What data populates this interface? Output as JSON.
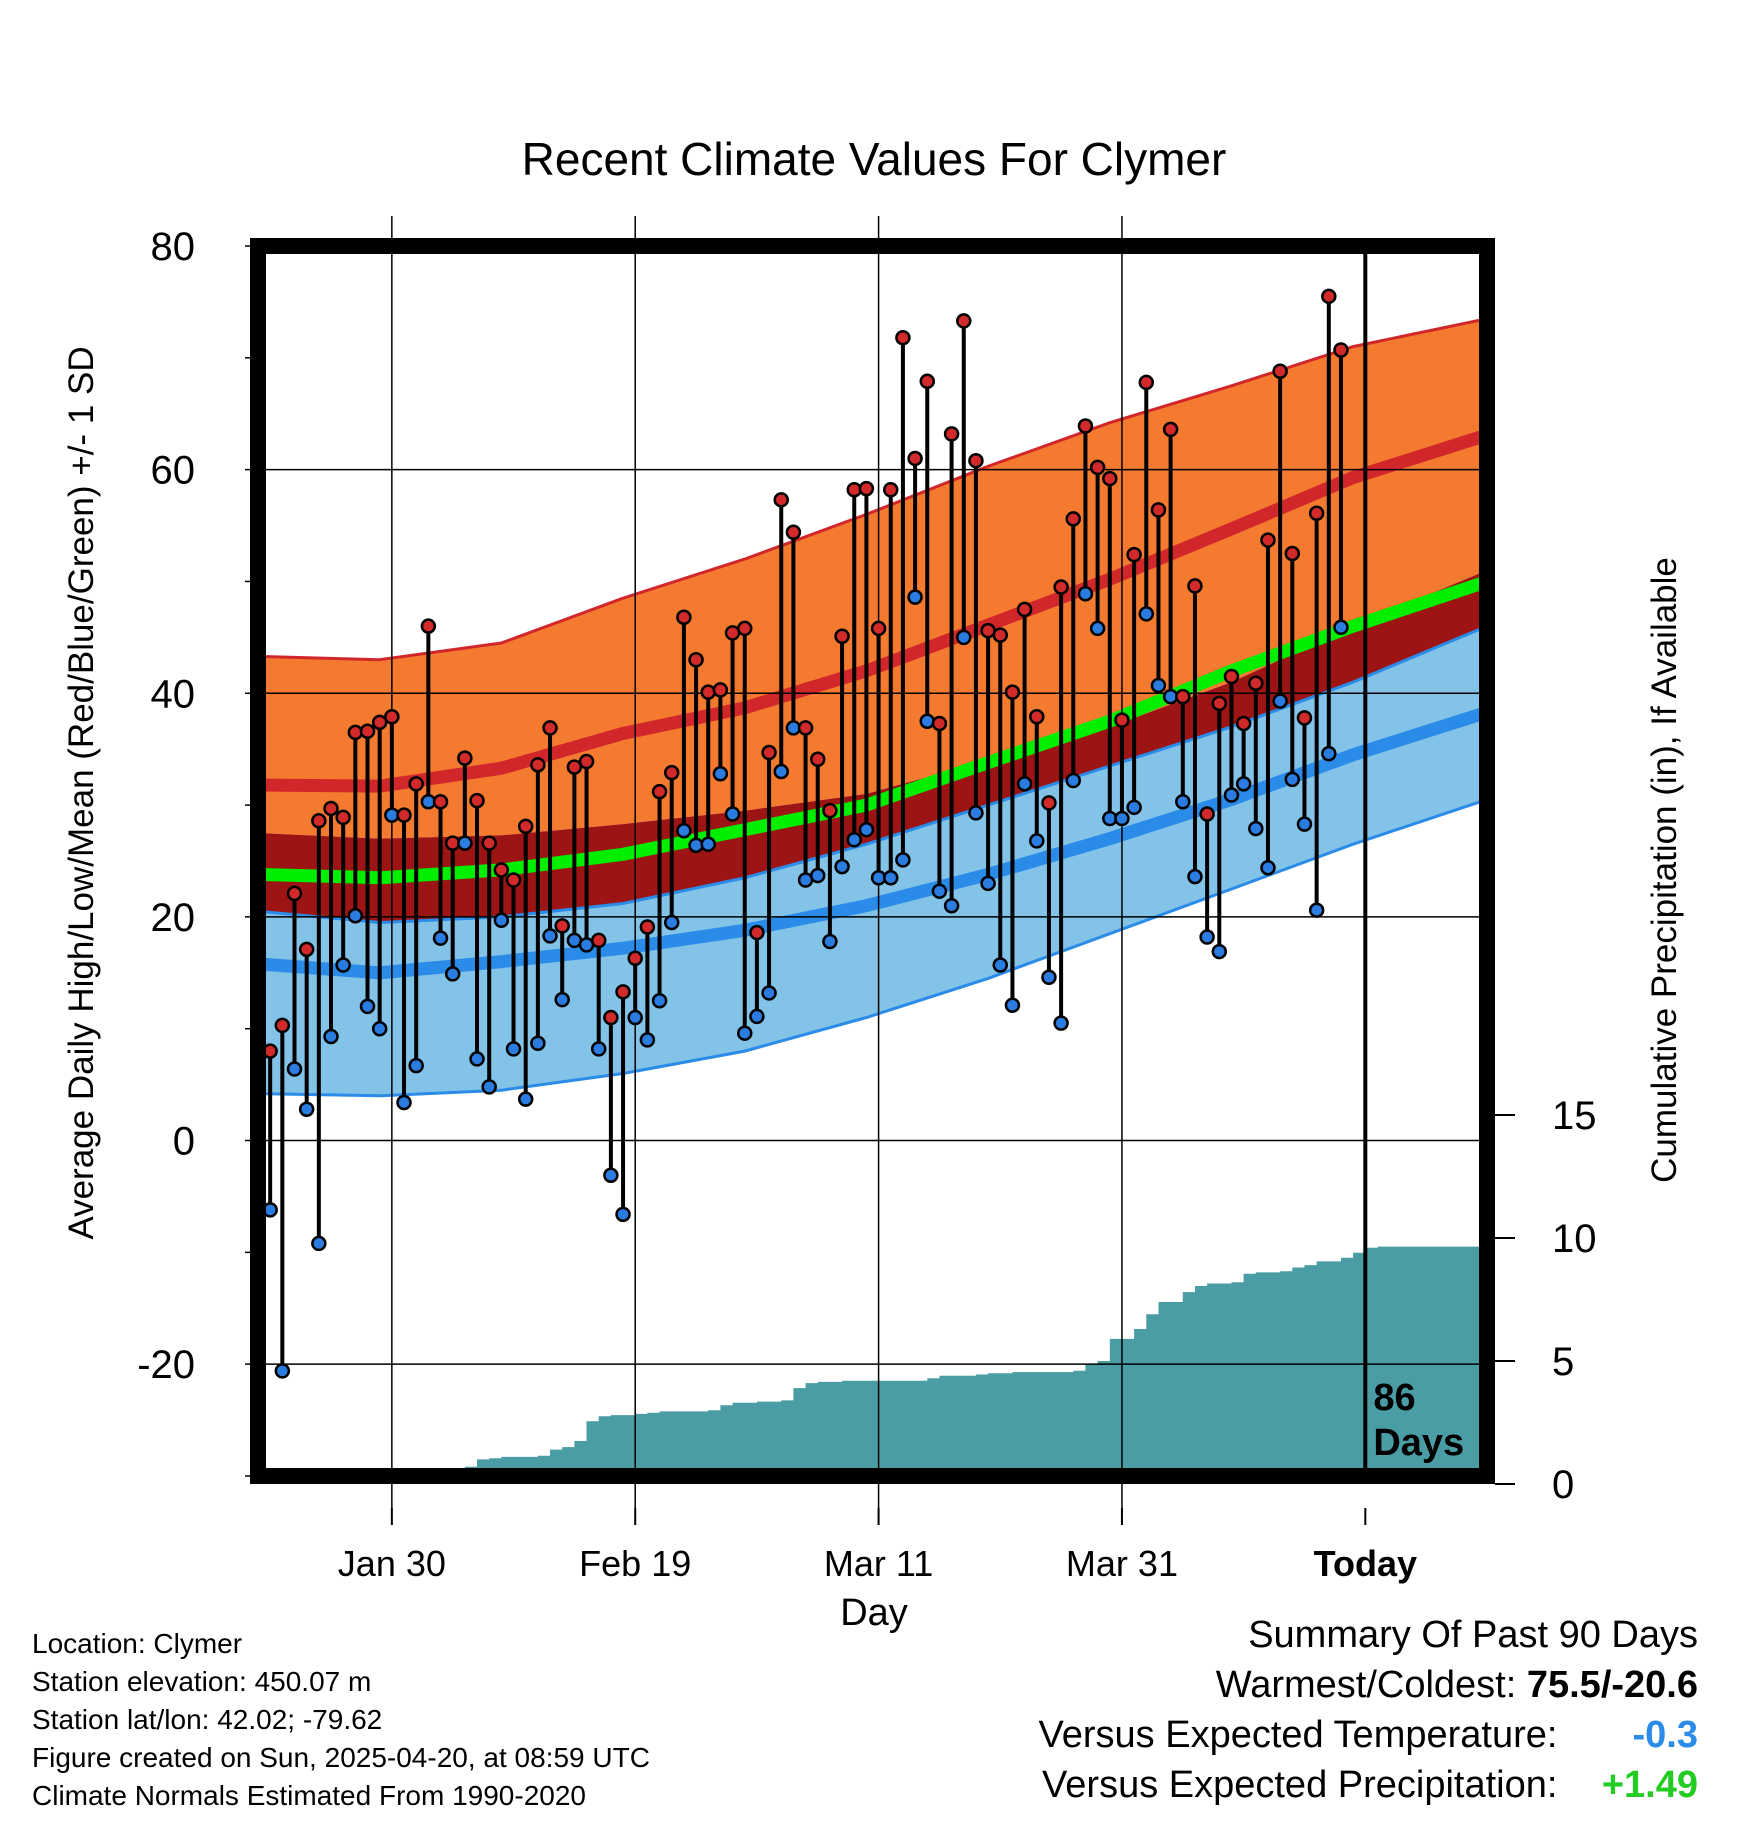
{
  "chart_data": {
    "type": "line",
    "title": "Recent Climate Values For Clymer",
    "xlabel": "Day",
    "ylabel": "Average Daily High/Low/Mean (Red/Blue/Green) +/- 1 SD",
    "y2label": "Cumulative Precipitation (in), If Available",
    "ylim": [
      -30,
      80
    ],
    "y2lim": [
      0,
      20
    ],
    "yticks": [
      "80",
      "60",
      "40",
      "20",
      "0",
      "-20"
    ],
    "y2ticks": [
      "15",
      "10",
      "5",
      "0"
    ],
    "xticks": [
      "Jan 30",
      "Feb 19",
      "Mar 11",
      "Mar 31",
      "Today"
    ],
    "xtick_days": [
      11,
      31,
      51,
      71,
      91
    ],
    "xlim": [
      0,
      101
    ],
    "grid": true,
    "today_marker_label": [
      "86",
      "Days"
    ],
    "colors": {
      "high_band": "#f47a30",
      "high_edge": "#d2272a",
      "low_band": "#84c3e8",
      "low_edge": "#2a8ce8",
      "overlap": "#9c1414",
      "mean": "#00ee00",
      "precip": "#4a9ca5",
      "high_marker": "#d22a2a",
      "low_marker": "#2a7ce0"
    },
    "normals": {
      "days": [
        0,
        10,
        20,
        30,
        40,
        50,
        60,
        70,
        80,
        90,
        101
      ],
      "high_mean": [
        31.8,
        31.7,
        33.3,
        36.4,
        38.7,
        42.0,
        46.1,
        50.2,
        54.7,
        59.3,
        63.1
      ],
      "high_sd_upper": [
        43.3,
        43.0,
        44.5,
        48.5,
        52.0,
        56.0,
        60.3,
        64.2,
        67.5,
        71.0,
        73.5
      ],
      "high_sd_lower": [
        27.5,
        27.0,
        27.3,
        28.3,
        29.5,
        31.0,
        34.0,
        37.0,
        41.0,
        46.0,
        51.0
      ],
      "mean": [
        23.8,
        23.5,
        24.2,
        25.6,
        27.8,
        30.0,
        33.8,
        37.5,
        42.0,
        46.0,
        50.0
      ],
      "low_mean": [
        15.8,
        15.0,
        16.0,
        17.2,
        18.8,
        21.0,
        23.8,
        27.0,
        30.5,
        34.5,
        38.3
      ],
      "low_sd_upper": [
        20.5,
        19.5,
        20.0,
        21.2,
        23.5,
        26.5,
        30.0,
        33.5,
        37.0,
        41.0,
        46.0
      ],
      "low_sd_lower": [
        4.2,
        4.0,
        4.5,
        6.0,
        8.0,
        11.0,
        14.5,
        18.5,
        22.5,
        26.5,
        30.5
      ]
    },
    "daily": {
      "days": [
        0,
        1,
        2,
        3,
        4,
        5,
        6,
        7,
        8,
        9,
        10,
        11,
        12,
        13,
        14,
        15,
        16,
        17,
        18,
        19,
        20,
        21,
        22,
        23,
        24,
        25,
        26,
        27,
        28,
        29,
        30,
        31,
        32,
        33,
        34,
        35,
        36,
        37,
        38,
        39,
        40,
        41,
        42,
        43,
        44,
        45,
        46,
        47,
        48,
        49,
        50,
        51,
        52,
        53,
        54,
        55,
        56,
        57,
        58,
        59,
        60,
        61,
        62,
        63,
        64,
        65,
        66,
        67,
        68,
        69,
        70,
        71,
        72,
        73,
        74,
        75,
        76,
        77,
        78,
        79,
        80,
        81,
        82,
        83,
        84,
        85,
        86,
        87,
        88,
        89,
        90
      ],
      "high": [
        13.7,
        8.0,
        10.3,
        22.1,
        17.1,
        28.6,
        29.7,
        28.9,
        36.5,
        36.6,
        37.4,
        37.9,
        29.1,
        31.9,
        46.0,
        30.3,
        26.6,
        34.2,
        30.4,
        26.6,
        24.2,
        23.3,
        28.1,
        33.6,
        36.9,
        19.2,
        33.4,
        33.9,
        17.9,
        11.0,
        13.3,
        16.3,
        19.1,
        31.2,
        32.9,
        46.8,
        43.0,
        40.1,
        40.3,
        45.4,
        45.8,
        18.6,
        34.7,
        57.3,
        54.4,
        36.9,
        34.1,
        29.5,
        45.1,
        58.2,
        58.3,
        45.8,
        58.2,
        71.8,
        61.0,
        67.9,
        37.3,
        63.2,
        73.3,
        60.8,
        45.6,
        45.2,
        40.1,
        47.5,
        37.9,
        30.2,
        49.5,
        55.6,
        63.9,
        60.2,
        59.2,
        37.6,
        52.4,
        67.8,
        56.4,
        63.6,
        39.7,
        49.6,
        29.2,
        39.1,
        41.5,
        37.3,
        40.9,
        53.7,
        68.8,
        52.5,
        37.8,
        56.1,
        75.5,
        70.7,
        null
      ],
      "low": [
        0.5,
        -6.2,
        -20.6,
        6.4,
        2.8,
        -9.2,
        9.3,
        15.7,
        20.1,
        12.0,
        10.0,
        29.1,
        3.4,
        6.7,
        30.3,
        18.1,
        14.9,
        26.6,
        7.3,
        4.8,
        19.7,
        8.2,
        3.7,
        8.7,
        18.3,
        12.6,
        17.9,
        17.5,
        8.2,
        -3.1,
        -6.6,
        11.0,
        9.0,
        12.5,
        19.5,
        27.7,
        26.4,
        26.5,
        32.8,
        29.2,
        9.6,
        11.1,
        13.2,
        33.0,
        36.9,
        23.3,
        23.7,
        17.8,
        24.5,
        26.9,
        27.8,
        23.5,
        23.5,
        25.1,
        48.6,
        37.5,
        22.3,
        21.0,
        45.0,
        29.3,
        23.0,
        15.7,
        12.1,
        31.9,
        26.8,
        14.6,
        10.5,
        32.2,
        48.9,
        45.8,
        28.8,
        28.8,
        29.8,
        47.1,
        40.7,
        39.7,
        30.3,
        23.6,
        18.2,
        16.9,
        30.9,
        31.9,
        27.9,
        24.4,
        39.3,
        32.3,
        28.3,
        20.6,
        34.6,
        45.9,
        null
      ]
    },
    "precip": {
      "days": [
        11,
        12,
        13,
        14,
        15,
        16,
        17,
        18,
        19,
        20,
        21,
        22,
        23,
        24,
        25,
        26,
        27,
        28,
        29,
        30,
        31,
        32,
        33,
        34,
        35,
        36,
        37,
        38,
        39,
        40,
        41,
        42,
        43,
        44,
        45,
        46,
        47,
        48,
        49,
        50,
        51,
        52,
        53,
        54,
        55,
        56,
        57,
        58,
        59,
        60,
        61,
        62,
        63,
        64,
        65,
        66,
        67,
        68,
        69,
        70,
        71,
        72,
        73,
        74,
        75,
        76,
        77,
        78,
        79,
        80,
        81,
        82,
        83,
        84,
        85,
        86,
        87,
        88,
        89,
        90,
        91,
        92,
        93,
        94,
        95,
        96,
        97,
        98,
        99,
        100,
        101
      ],
      "cumulative": [
        0.0,
        0.5,
        0.55,
        0.65,
        0.65,
        0.65,
        0.7,
        1.0,
        1.05,
        1.1,
        1.1,
        1.1,
        1.15,
        1.4,
        1.5,
        1.75,
        2.55,
        2.75,
        2.8,
        2.8,
        2.85,
        2.9,
        2.95,
        2.95,
        2.95,
        2.95,
        3.0,
        3.2,
        3.3,
        3.3,
        3.35,
        3.35,
        3.4,
        3.9,
        4.1,
        4.15,
        4.15,
        4.2,
        4.2,
        4.2,
        4.2,
        4.2,
        4.2,
        4.2,
        4.3,
        4.4,
        4.4,
        4.4,
        4.45,
        4.5,
        4.5,
        4.55,
        4.55,
        4.55,
        4.55,
        4.55,
        4.6,
        4.9,
        5.0,
        5.9,
        5.9,
        6.3,
        6.9,
        7.4,
        7.4,
        7.8,
        8.05,
        8.15,
        8.15,
        8.2,
        8.55,
        8.6,
        8.6,
        8.65,
        8.8,
        8.9,
        9.05,
        9.05,
        9.2,
        9.4,
        9.6,
        9.65,
        9.65,
        9.65,
        9.65,
        9.65,
        9.65,
        9.65,
        9.65,
        9.65,
        9.65
      ]
    }
  },
  "footer": {
    "location": "Location: Clymer",
    "elevation": "Station elevation: 450.07 m",
    "latlon": "Station lat/lon: 42.02; -79.62",
    "created": "Figure created on Sun, 2025-04-20, at 08:59 UTC",
    "normals": "Climate Normals Estimated From 1990-2020"
  },
  "summary": {
    "heading": "Summary Of Past 90 Days",
    "warmest_label": "Warmest/Coldest:",
    "warmest_value": "75.5/-20.6",
    "temp_label": "Versus Expected Temperature:",
    "temp_value": "-0.3",
    "temp_color": "#2a8ce8",
    "precip_label": "Versus Expected Precipitation:",
    "precip_value": "+1.49",
    "precip_color": "#22cc22"
  }
}
